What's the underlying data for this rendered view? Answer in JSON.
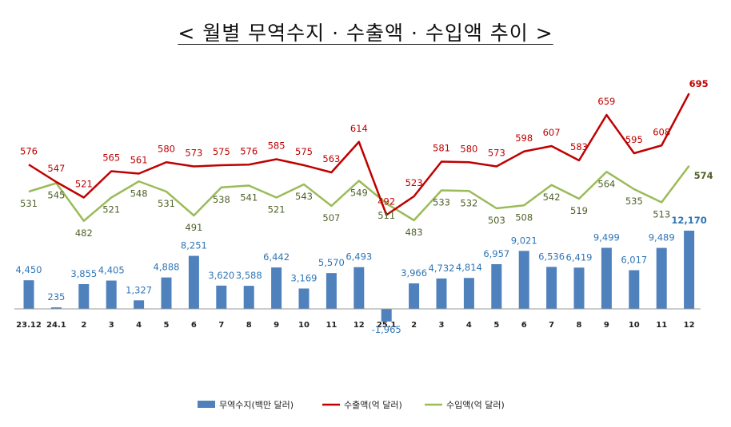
{
  "title": "< 월별 무역수지 · 수출액 · 수입액 추이 >",
  "colors": {
    "balance": "#4f81bd",
    "exports": "#c00000",
    "imports": "#9bbb59",
    "balance_label": "#2e75b6",
    "imports_label": "#4f6228"
  },
  "chart_data": {
    "type": "bar+line",
    "title": "< 월별 무역수지 · 수출액 · 수입액 추이 >",
    "categories": [
      "23.12",
      "24.1",
      "2",
      "3",
      "4",
      "5",
      "6",
      "7",
      "8",
      "9",
      "10",
      "11",
      "12",
      "25.1",
      "2",
      "3",
      "4",
      "5",
      "6",
      "7",
      "8",
      "9",
      "10",
      "11",
      "12"
    ],
    "series": [
      {
        "name": "무역수지(백만 달러)",
        "type": "bar",
        "values": [
          4450,
          235,
          3855,
          4405,
          1327,
          4888,
          8251,
          3620,
          3588,
          6442,
          3169,
          5570,
          6493,
          -1965,
          3966,
          4732,
          4814,
          6957,
          9021,
          6536,
          6419,
          9499,
          6017,
          9489,
          12170
        ],
        "labels": [
          "4,450",
          "235",
          "3,855",
          "4,405",
          "1,327",
          "4,888",
          "8,251",
          "3,620",
          "3,588",
          "6,442",
          "3,169",
          "5,570",
          "6,493",
          "-1,965",
          "3,966",
          "4,732",
          "4,814",
          "6,957",
          "9,021",
          "6,536",
          "6,419",
          "9,499",
          "6,017",
          "9,489",
          "12,170"
        ]
      },
      {
        "name": "수출액(억 달러)",
        "type": "line",
        "values": [
          576,
          547,
          521,
          565,
          561,
          580,
          573,
          575,
          576,
          585,
          575,
          563,
          614,
          492,
          523,
          581,
          580,
          573,
          598,
          607,
          583,
          659,
          595,
          608,
          695
        ]
      },
      {
        "name": "수입액(억 달러)",
        "type": "line",
        "values": [
          531,
          545,
          482,
          521,
          548,
          531,
          491,
          538,
          541,
          521,
          543,
          507,
          549,
          511,
          483,
          533,
          532,
          503,
          508,
          542,
          519,
          564,
          535,
          513,
          574
        ]
      }
    ],
    "legend": "bottom-center"
  }
}
